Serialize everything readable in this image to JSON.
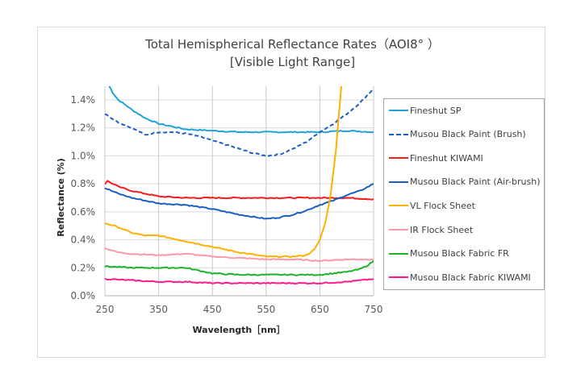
{
  "chart_data": {
    "type": "line",
    "title": "Total Hemispherical Reflectance Rates（AOI8°  ）",
    "subtitle": "[Visible Light Range]",
    "xlabel": "Wavelength［nm］",
    "ylabel": "Reflectance (%)",
    "xlim": [
      250,
      750
    ],
    "ylim": [
      0,
      1.5
    ],
    "xticks": [
      250,
      350,
      450,
      550,
      650,
      750
    ],
    "xtick_labels": [
      "250",
      "350",
      "450",
      "550",
      "650",
      "750"
    ],
    "yticks": [
      0,
      0.2,
      0.4,
      0.6,
      0.8,
      1.0,
      1.2,
      1.4
    ],
    "ytick_labels": [
      "0.0%",
      "0.2%",
      "0.4%",
      "0.6%",
      "0.8%",
      "1.0%",
      "1.2%",
      "1.4%"
    ],
    "grid": true,
    "legend_position": "right",
    "series": [
      {
        "name": "Fineshut SP",
        "color": "#1fa3d8",
        "style": "solid",
        "x": [
          258,
          265,
          275,
          290,
          300,
          325,
          350,
          375,
          400,
          450,
          500,
          550,
          600,
          650,
          700,
          750
        ],
        "y": [
          1.5,
          1.45,
          1.4,
          1.36,
          1.33,
          1.27,
          1.23,
          1.21,
          1.19,
          1.18,
          1.17,
          1.17,
          1.17,
          1.17,
          1.18,
          1.17
        ]
      },
      {
        "name": "Musou Black Paint (Brush)",
        "color": "#1a5fc4",
        "style": "dashed",
        "x": [
          250,
          275,
          300,
          325,
          350,
          375,
          400,
          425,
          450,
          475,
          500,
          525,
          550,
          575,
          600,
          625,
          650,
          675,
          700,
          725,
          750
        ],
        "y": [
          1.3,
          1.24,
          1.2,
          1.15,
          1.17,
          1.17,
          1.16,
          1.14,
          1.11,
          1.08,
          1.05,
          1.02,
          1.0,
          1.01,
          1.05,
          1.1,
          1.17,
          1.23,
          1.3,
          1.38,
          1.48
        ]
      },
      {
        "name": "Fineshut KIWAMI",
        "color": "#ff1a1a",
        "style": "solid",
        "x": [
          250,
          255,
          275,
          300,
          325,
          350,
          400,
          450,
          500,
          550,
          600,
          650,
          700,
          750
        ],
        "y": [
          0.8,
          0.82,
          0.78,
          0.75,
          0.73,
          0.71,
          0.7,
          0.7,
          0.7,
          0.7,
          0.7,
          0.7,
          0.7,
          0.69
        ]
      },
      {
        "name": "Musou Black Paint (Air-brush)",
        "color": "#1a5fc4",
        "style": "solid",
        "x": [
          250,
          275,
          300,
          325,
          350,
          400,
          450,
          500,
          550,
          575,
          600,
          625,
          650,
          675,
          700,
          725,
          750
        ],
        "y": [
          0.77,
          0.73,
          0.7,
          0.68,
          0.66,
          0.65,
          0.62,
          0.58,
          0.55,
          0.56,
          0.58,
          0.61,
          0.65,
          0.68,
          0.72,
          0.75,
          0.8
        ]
      },
      {
        "name": "VL Flock Sheet",
        "color": "#ffb000",
        "style": "solid",
        "x": [
          250,
          275,
          300,
          325,
          350,
          400,
          450,
          500,
          550,
          600,
          625,
          640,
          650,
          660,
          670,
          675,
          680,
          685,
          690
        ],
        "y": [
          0.52,
          0.49,
          0.45,
          0.43,
          0.43,
          0.39,
          0.35,
          0.31,
          0.28,
          0.28,
          0.29,
          0.33,
          0.4,
          0.52,
          0.72,
          0.88,
          1.05,
          1.28,
          1.5
        ]
      },
      {
        "name": "IR Flock Sheet",
        "color": "#ff99aa",
        "style": "solid",
        "x": [
          250,
          275,
          300,
          350,
          400,
          450,
          500,
          550,
          600,
          650,
          700,
          750
        ],
        "y": [
          0.34,
          0.31,
          0.3,
          0.29,
          0.3,
          0.28,
          0.27,
          0.26,
          0.26,
          0.25,
          0.26,
          0.26
        ]
      },
      {
        "name": "Musou Black Fabric FR",
        "color": "#1db32d",
        "style": "solid",
        "x": [
          250,
          300,
          350,
          400,
          425,
          450,
          500,
          550,
          600,
          650,
          700,
          725,
          740,
          750
        ],
        "y": [
          0.21,
          0.2,
          0.2,
          0.2,
          0.18,
          0.16,
          0.15,
          0.15,
          0.15,
          0.15,
          0.17,
          0.19,
          0.22,
          0.25
        ]
      },
      {
        "name": "Musou Black Fabric KIWAMI",
        "color": "#ff1a8c",
        "style": "solid",
        "x": [
          250,
          300,
          350,
          400,
          450,
          500,
          550,
          600,
          650,
          700,
          725,
          750
        ],
        "y": [
          0.12,
          0.11,
          0.1,
          0.1,
          0.09,
          0.09,
          0.09,
          0.09,
          0.09,
          0.1,
          0.11,
          0.12
        ]
      }
    ]
  }
}
